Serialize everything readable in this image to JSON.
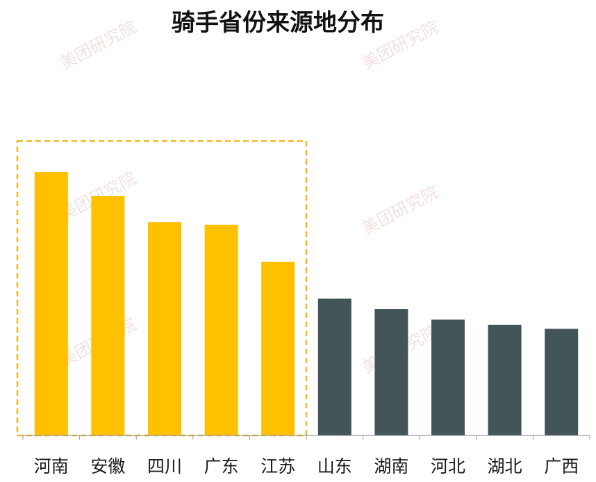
{
  "chart_data": {
    "type": "bar",
    "title": "骑手省份来源地分布",
    "categories": [
      "河南",
      "安徽",
      "四川",
      "广东",
      "江苏",
      "山东",
      "湖南",
      "河北",
      "湖北",
      "广西"
    ],
    "values": [
      100,
      91,
      81,
      80,
      66,
      52,
      48,
      44,
      42,
      40.5
    ],
    "ylim": [
      0,
      110
    ],
    "xlabel": "",
    "ylabel": "",
    "grid": false,
    "legend": "none",
    "highlight_count": 5,
    "colors": {
      "highlight": "#FFC000",
      "normal": "#44555A",
      "box": "#F2B820",
      "axis": "#9a9a9a"
    }
  },
  "watermark": "美团研究院"
}
